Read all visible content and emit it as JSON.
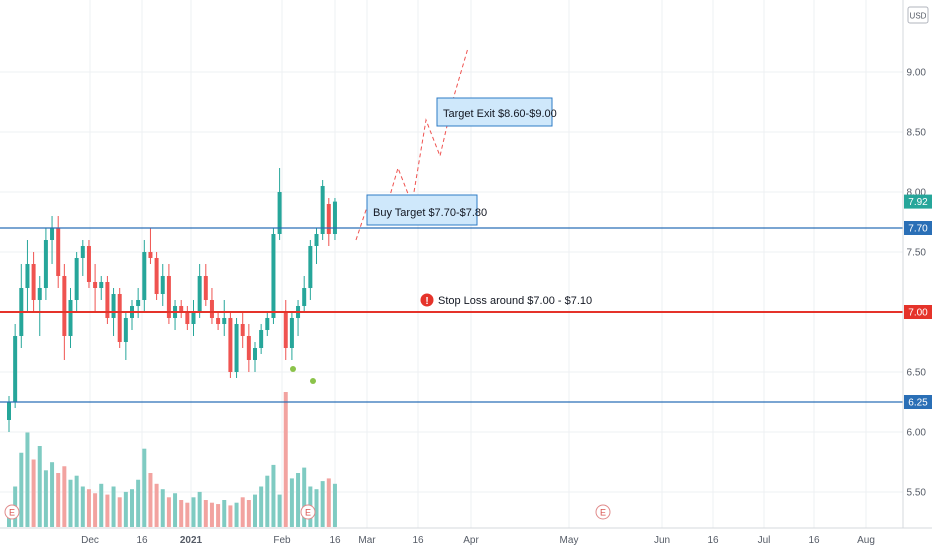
{
  "chart_data": {
    "type": "candlestick",
    "currency_label": "USD",
    "y_ticks": [
      "9.00",
      "8.50",
      "8.00",
      "7.50",
      "7.00",
      "6.50",
      "6.00",
      "5.50"
    ],
    "y_tick_values": [
      9.0,
      8.5,
      8.0,
      7.5,
      7.0,
      6.5,
      6.0,
      5.5
    ],
    "ylim": [
      5.2,
      9.6
    ],
    "x_ticks": [
      "Dec",
      "16",
      "2021",
      "Feb",
      "16",
      "Mar",
      "16",
      "Apr",
      "May",
      "Jun",
      "16",
      "Jul",
      "16",
      "Aug"
    ],
    "price_labels": [
      {
        "text": "7.92",
        "value": 7.92,
        "color": "#26a69a"
      },
      {
        "text": "7.70",
        "value": 7.7,
        "color": "#2a6fb6"
      },
      {
        "text": "7.00",
        "value": 7.0,
        "color": "#e5332a"
      },
      {
        "text": "6.25",
        "value": 6.25,
        "color": "#2a6fb6"
      }
    ],
    "horizontal_lines": [
      {
        "name": "buy-line",
        "value": 7.7,
        "color": "#2a6fb6"
      },
      {
        "name": "stop-line",
        "value": 7.0,
        "color": "#e5332a"
      },
      {
        "name": "support-line",
        "value": 6.25,
        "color": "#2a6fb6"
      }
    ],
    "annotations": {
      "buy_target": "Buy Target $7.70-$7.80",
      "target_exit": "Target Exit $8.60-$9.00",
      "stop_loss": "Stop Loss around $7.00 - $7.10",
      "stop_loss_icon": "!"
    },
    "earnings_marker": "E",
    "projection": [
      7.6,
      7.95,
      7.8,
      8.2,
      7.9,
      8.6,
      8.3,
      8.8,
      9.2
    ],
    "candles": [
      [
        6.1,
        6.3,
        6.0,
        6.25
      ],
      [
        6.25,
        6.9,
        6.2,
        6.8
      ],
      [
        6.8,
        7.4,
        6.7,
        7.2
      ],
      [
        7.2,
        7.6,
        7.0,
        7.4
      ],
      [
        7.4,
        7.5,
        7.0,
        7.1
      ],
      [
        7.1,
        7.3,
        6.8,
        7.2
      ],
      [
        7.2,
        7.7,
        7.1,
        7.6
      ],
      [
        7.6,
        7.8,
        7.4,
        7.7
      ],
      [
        7.7,
        7.8,
        7.2,
        7.3
      ],
      [
        7.3,
        7.4,
        6.6,
        6.8
      ],
      [
        6.8,
        7.2,
        6.7,
        7.1
      ],
      [
        7.1,
        7.5,
        7.0,
        7.45
      ],
      [
        7.45,
        7.6,
        7.3,
        7.55
      ],
      [
        7.55,
        7.6,
        7.2,
        7.25
      ],
      [
        7.25,
        7.4,
        7.0,
        7.2
      ],
      [
        7.2,
        7.3,
        7.1,
        7.25
      ],
      [
        7.25,
        7.3,
        6.9,
        6.95
      ],
      [
        6.95,
        7.2,
        6.8,
        7.15
      ],
      [
        7.15,
        7.2,
        6.7,
        6.75
      ],
      [
        6.75,
        7.0,
        6.6,
        6.95
      ],
      [
        6.95,
        7.1,
        6.85,
        7.05
      ],
      [
        7.05,
        7.2,
        6.95,
        7.1
      ],
      [
        7.1,
        7.6,
        7.0,
        7.5
      ],
      [
        7.5,
        7.7,
        7.4,
        7.45
      ],
      [
        7.45,
        7.5,
        7.1,
        7.15
      ],
      [
        7.15,
        7.4,
        7.05,
        7.3
      ],
      [
        7.3,
        7.4,
        6.9,
        6.95
      ],
      [
        6.95,
        7.1,
        6.85,
        7.05
      ],
      [
        7.05,
        7.1,
        6.95,
        7.0
      ],
      [
        7.0,
        7.05,
        6.85,
        6.9
      ],
      [
        6.9,
        7.1,
        6.8,
        7.0
      ],
      [
        7.0,
        7.4,
        6.95,
        7.3
      ],
      [
        7.3,
        7.4,
        7.05,
        7.1
      ],
      [
        7.1,
        7.2,
        6.9,
        6.95
      ],
      [
        6.95,
        7.0,
        6.85,
        6.9
      ],
      [
        6.9,
        7.1,
        6.8,
        6.95
      ],
      [
        6.95,
        7.0,
        6.45,
        6.5
      ],
      [
        6.5,
        6.95,
        6.45,
        6.9
      ],
      [
        6.9,
        7.0,
        6.7,
        6.8
      ],
      [
        6.8,
        6.9,
        6.5,
        6.6
      ],
      [
        6.6,
        6.75,
        6.5,
        6.7
      ],
      [
        6.7,
        6.9,
        6.65,
        6.85
      ],
      [
        6.85,
        7.0,
        6.8,
        6.95
      ],
      [
        6.95,
        7.7,
        6.9,
        7.65
      ],
      [
        7.65,
        8.2,
        7.6,
        8.0
      ],
      [
        7.0,
        7.1,
        6.6,
        6.7
      ],
      [
        6.7,
        7.0,
        6.6,
        6.95
      ],
      [
        6.95,
        7.1,
        6.8,
        7.05
      ],
      [
        7.05,
        7.3,
        7.0,
        7.2
      ],
      [
        7.2,
        7.6,
        7.1,
        7.55
      ],
      [
        7.55,
        7.7,
        7.4,
        7.65
      ],
      [
        7.65,
        8.1,
        7.6,
        8.05
      ],
      [
        7.9,
        7.95,
        7.55,
        7.65
      ],
      [
        7.65,
        7.95,
        7.6,
        7.92
      ]
    ],
    "volumes": [
      15,
      30,
      55,
      70,
      50,
      60,
      42,
      48,
      40,
      45,
      35,
      38,
      30,
      28,
      25,
      32,
      24,
      30,
      22,
      26,
      28,
      35,
      58,
      40,
      32,
      28,
      22,
      25,
      20,
      18,
      22,
      26,
      20,
      18,
      17,
      20,
      16,
      18,
      22,
      20,
      24,
      30,
      38,
      46,
      24,
      100,
      36,
      40,
      44,
      30,
      28,
      34,
      36,
      32
    ]
  }
}
